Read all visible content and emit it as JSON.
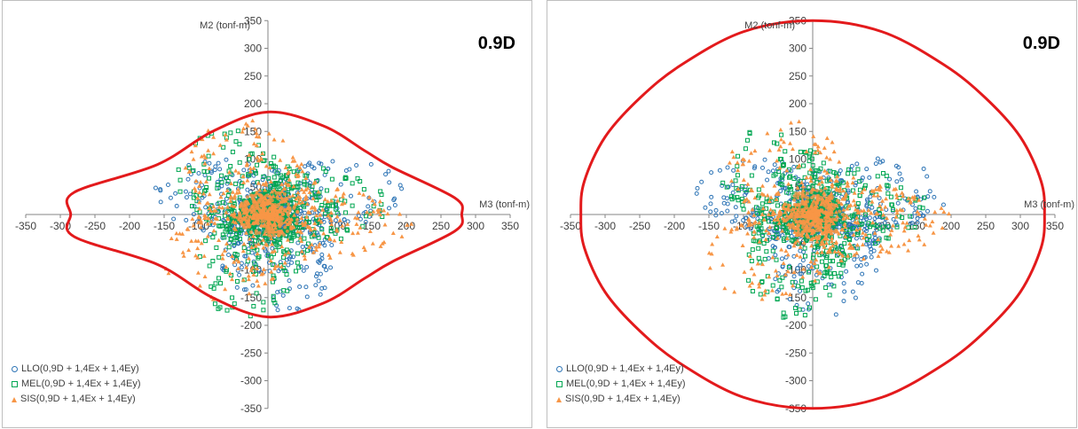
{
  "chart_data": [
    {
      "type": "scatter",
      "title": "0.9D",
      "xlabel": "M3 (tonf-m)",
      "ylabel": "M2 (tonf-m)",
      "xlim": [
        -350,
        350
      ],
      "ylim": [
        -350,
        350
      ],
      "x_ticks": [
        -350,
        -300,
        -250,
        -200,
        -150,
        -100,
        -50,
        0,
        50,
        100,
        150,
        200,
        250,
        300,
        350
      ],
      "y_ticks": [
        -350,
        -300,
        -250,
        -200,
        -150,
        -100,
        -50,
        0,
        50,
        100,
        150,
        200,
        250,
        300,
        350
      ],
      "grid": false,
      "legend_position": "bottom-left",
      "series": [
        {
          "name": "LLO(0,9D + 1,4Ex + 1,4Ey)",
          "marker": "circle",
          "color": "#2e75b6",
          "extent": {
            "x": [
              -190,
              215
            ],
            "y": [
              -185,
              170
            ]
          }
        },
        {
          "name": "MEL(0,9D + 1,4Ex + 1,4Ey)",
          "marker": "square",
          "color": "#00a651",
          "extent": {
            "x": [
              -175,
              175
            ],
            "y": [
              -200,
              195
            ]
          }
        },
        {
          "name": "SIS(0,9D + 1,4Ex + 1,4Ey)",
          "marker": "triangle",
          "color": "#f79646",
          "extent": {
            "x": [
              -205,
              210
            ],
            "y": [
              -190,
              185
            ]
          }
        }
      ],
      "capacity_curve": {
        "color": "#e31a1c",
        "points": [
          [
            280,
            0
          ],
          [
            270,
            30
          ],
          [
            180,
            85
          ],
          [
            140,
            115
          ],
          [
            80,
            160
          ],
          [
            0,
            185
          ],
          [
            -80,
            150
          ],
          [
            -160,
            90
          ],
          [
            -280,
            40
          ],
          [
            -285,
            0
          ],
          [
            -280,
            -40
          ],
          [
            -160,
            -90
          ],
          [
            -80,
            -150
          ],
          [
            0,
            -185
          ],
          [
            80,
            -160
          ],
          [
            140,
            -115
          ],
          [
            180,
            -85
          ],
          [
            270,
            -30
          ]
        ]
      }
    },
    {
      "type": "scatter",
      "title": "0.9D",
      "xlabel": "M3 (tonf-m)",
      "ylabel": "M2 (tonf-m)",
      "xlim": [
        -350,
        350
      ],
      "ylim": [
        -350,
        350
      ],
      "x_ticks": [
        -350,
        -300,
        -250,
        -200,
        -150,
        -100,
        -50,
        0,
        50,
        100,
        150,
        200,
        250,
        300,
        350
      ],
      "y_ticks": [
        -350,
        -300,
        -250,
        -200,
        -150,
        -100,
        -50,
        0,
        50,
        100,
        150,
        200,
        250,
        300,
        350
      ],
      "grid": false,
      "legend_position": "bottom-left",
      "series": [
        {
          "name": "LLO(0,9D + 1,4Ex + 1,4Ey)",
          "marker": "circle",
          "color": "#2e75b6",
          "extent": {
            "x": [
              -190,
              215
            ],
            "y": [
              -185,
              170
            ]
          }
        },
        {
          "name": "MEL(0,9D + 1,4Ex + 1,4Ey)",
          "marker": "square",
          "color": "#00a651",
          "extent": {
            "x": [
              -175,
              175
            ],
            "y": [
              -200,
              195
            ]
          }
        },
        {
          "name": "SIS(0,9D + 1,4Ex + 1,4Ey)",
          "marker": "triangle",
          "color": "#f79646",
          "extent": {
            "x": [
              -205,
              210
            ],
            "y": [
              -190,
              185
            ]
          }
        }
      ],
      "capacity_curve": {
        "color": "#e31a1c",
        "points": [
          [
            335,
            0
          ],
          [
            330,
            60
          ],
          [
            300,
            140
          ],
          [
            250,
            210
          ],
          [
            190,
            270
          ],
          [
            100,
            330
          ],
          [
            0,
            350
          ],
          [
            -100,
            330
          ],
          [
            -190,
            270
          ],
          [
            -250,
            210
          ],
          [
            -300,
            140
          ],
          [
            -330,
            60
          ],
          [
            -335,
            0
          ],
          [
            -330,
            -60
          ],
          [
            -300,
            -140
          ],
          [
            -250,
            -210
          ],
          [
            -190,
            -270
          ],
          [
            -100,
            -330
          ],
          [
            0,
            -350
          ],
          [
            100,
            -330
          ],
          [
            190,
            -270
          ],
          [
            250,
            -210
          ],
          [
            300,
            -140
          ],
          [
            330,
            -60
          ]
        ]
      }
    }
  ]
}
